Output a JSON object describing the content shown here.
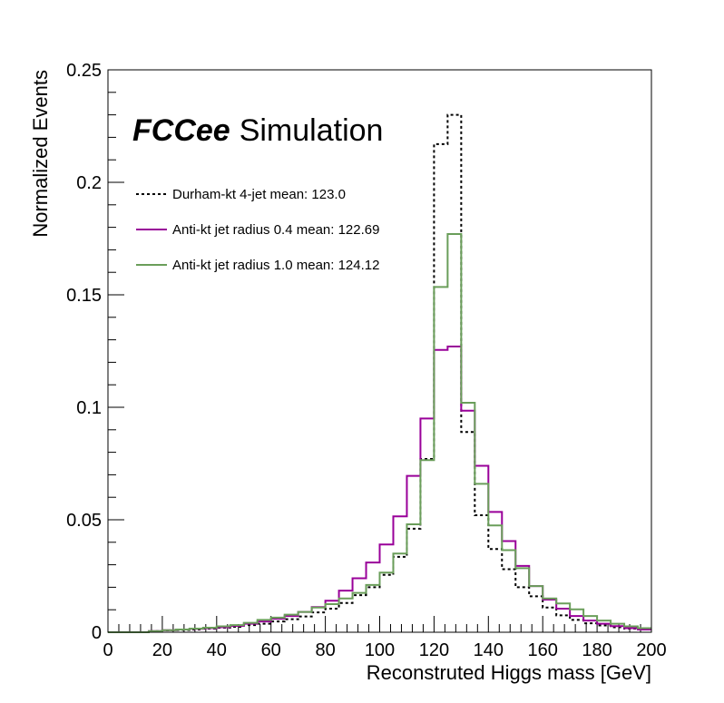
{
  "chart_data": {
    "type": "line",
    "style": "step-histogram",
    "title": "",
    "xlabel": "Reconstruted Higgs mass [GeV]",
    "ylabel": "Normalized Events",
    "xlim": [
      0,
      200
    ],
    "ylim": [
      0,
      0.25
    ],
    "bin_width": 5,
    "x_ticks": [
      "0",
      "20",
      "40",
      "60",
      "80",
      "100",
      "120",
      "140",
      "160",
      "180",
      "200"
    ],
    "y_ticks": [
      "0",
      "0.05",
      "0.1",
      "0.15",
      "0.2",
      "0.25"
    ],
    "brand_bold": "FCCee",
    "brand_text": "Simulation",
    "legend_position": "top-left",
    "series": [
      {
        "name": "Durham-kt 4-jet  mean: 123.0",
        "color": "#000000",
        "dashed": true,
        "values": [
          0,
          0,
          0,
          0.0005,
          0.0008,
          0.001,
          0.0012,
          0.0016,
          0.002,
          0.0024,
          0.0032,
          0.0038,
          0.0048,
          0.0058,
          0.007,
          0.0088,
          0.0105,
          0.013,
          0.0165,
          0.02,
          0.0255,
          0.0335,
          0.046,
          0.077,
          0.217,
          0.23,
          0.089,
          0.052,
          0.037,
          0.028,
          0.02,
          0.016,
          0.011,
          0.0075,
          0.0055,
          0.004,
          0.003,
          0.0022,
          0.0016,
          0.0012
        ]
      },
      {
        "name": "Anti-kt jet radius 0.4 mean: 122.69",
        "color": "#990099",
        "dashed": false,
        "values": [
          0,
          0,
          0,
          0.0005,
          0.0009,
          0.0012,
          0.0015,
          0.0018,
          0.0022,
          0.0028,
          0.0038,
          0.0048,
          0.006,
          0.0072,
          0.009,
          0.0112,
          0.014,
          0.0185,
          0.024,
          0.031,
          0.039,
          0.0515,
          0.0695,
          0.095,
          0.1255,
          0.127,
          0.0985,
          0.074,
          0.0535,
          0.0405,
          0.0295,
          0.0205,
          0.0145,
          0.0105,
          0.0072,
          0.0052,
          0.0038,
          0.0027,
          0.0018,
          0.0012
        ]
      },
      {
        "name": "Anti-kt jet radius 1.0 mean: 124.12",
        "color": "#6a9e5a",
        "dashed": false,
        "values": [
          0,
          0,
          0,
          0.0005,
          0.0009,
          0.0012,
          0.0016,
          0.002,
          0.0026,
          0.0032,
          0.0042,
          0.0055,
          0.0065,
          0.0078,
          0.009,
          0.011,
          0.0125,
          0.015,
          0.0175,
          0.021,
          0.0265,
          0.035,
          0.048,
          0.0765,
          0.1535,
          0.177,
          0.102,
          0.066,
          0.0475,
          0.0365,
          0.0285,
          0.0205,
          0.015,
          0.0128,
          0.0102,
          0.0072,
          0.0052,
          0.0038,
          0.0026,
          0.0018
        ]
      }
    ]
  }
}
